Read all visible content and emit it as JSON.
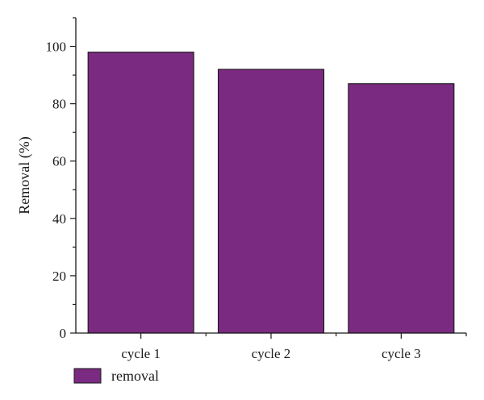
{
  "chart_data": {
    "type": "bar",
    "categories": [
      "cycle 1",
      "cycle 2",
      "cycle 3"
    ],
    "series": [
      {
        "name": "removal",
        "values": [
          98,
          92,
          87
        ],
        "color": "#7b2a81"
      }
    ],
    "ylabel": "Removal (%)",
    "xlabel": "",
    "ylim": [
      0,
      110
    ],
    "yticks": [
      "0",
      "20",
      "40",
      "60",
      "80",
      "100"
    ],
    "grid": false,
    "legend": "bottom-left"
  }
}
